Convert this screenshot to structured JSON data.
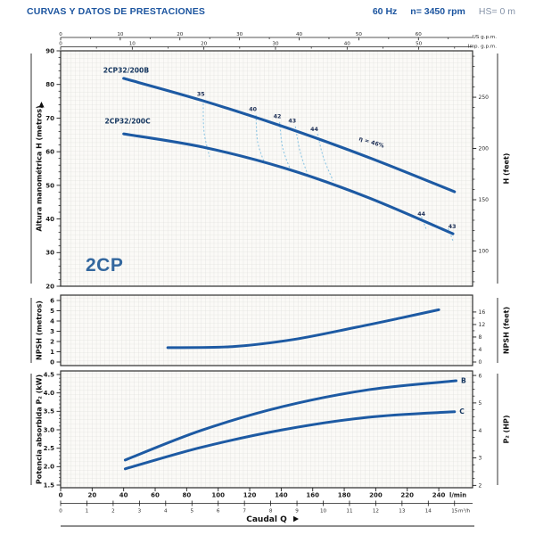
{
  "header": {
    "title": "CURVAS Y DATOS DE PRESTACIONES",
    "frequency": "60 Hz",
    "speed": "n= 3450 rpm",
    "suction": "HS= 0 m"
  },
  "model_label": "2CP",
  "colors": {
    "header_blue": "#1b549f",
    "suction_gray": "#8593a8",
    "curve_blue": "#1d5aa3",
    "curve_label_navy": "#15365f",
    "efficiency_dash_blue": "#8ec6e4",
    "grid_gray": "#d7d7d4",
    "plot_paper": "#fbfaf7",
    "axis_dark": "#2e2e2e",
    "model_blue": "#33679e"
  },
  "chart_data": [
    {
      "type": "line",
      "name": "head_vs_flow",
      "title": "",
      "x": {
        "unit": "l/min",
        "min": 0,
        "max": 261
      },
      "top_scales": [
        {
          "unit": "US g.p.m.",
          "ticks": [
            0,
            10,
            20,
            30,
            40,
            50,
            60
          ],
          "minor_step": 5,
          "lmin_per_unit": 3.785
        },
        {
          "unit": "Imp. g.p.m.",
          "ticks": [
            0,
            10,
            20,
            30,
            40,
            50
          ],
          "minor_step": 5,
          "lmin_per_unit": 4.546
        }
      ],
      "y_left": {
        "label": "Altura manométrica H (metros)",
        "min": 20,
        "max": 90,
        "ticks": [
          20,
          30,
          40,
          50,
          60,
          70,
          80,
          90
        ],
        "minor_step": 2
      },
      "y_right": {
        "label": "H (feet)",
        "ticks": [
          100,
          150,
          200,
          250
        ],
        "minor_step": 10,
        "m_per_foot": 0.3048
      },
      "grid": true,
      "series": [
        {
          "name": "2CP32/200B",
          "label_q": 27,
          "label_h": 83.5,
          "points": [
            [
              40,
              81.8
            ],
            [
              90,
              75.2
            ],
            [
              143,
              67.2
            ],
            [
              196,
              58.2
            ],
            [
              250,
              48.1
            ]
          ]
        },
        {
          "name": "2CP32/200C",
          "label_q": 28,
          "label_h": 68.4,
          "points": [
            [
              40,
              65.3
            ],
            [
              91,
              61.3
            ],
            [
              143,
              55.0
            ],
            [
              195,
              46.4
            ],
            [
              249,
              35.6
            ]
          ]
        }
      ],
      "efficiency": {
        "lines": [
          {
            "label": "35",
            "lq": 89,
            "lh": 76.6,
            "points": [
              [
                90.5,
                75.4
              ],
              [
                91,
                66
              ],
              [
                94.5,
                58.5
              ]
            ]
          },
          {
            "label": "40",
            "lq": 122,
            "lh": 72.1,
            "points": [
              [
                124,
                70.9
              ],
              [
                125,
                63
              ],
              [
                129,
                57.1
              ]
            ]
          },
          {
            "label": "42",
            "lq": 137.5,
            "lh": 70.0,
            "points": [
              [
                139,
                68.8
              ],
              [
                141,
                61
              ],
              [
                146,
                54.5
              ]
            ]
          },
          {
            "label": "43",
            "lq": 147,
            "lh": 68.6,
            "points": [
              [
                149,
                67.5
              ],
              [
                152,
                60
              ],
              [
                157,
                52.9
              ]
            ]
          },
          {
            "label": "44",
            "lq": 161,
            "lh": 66.2,
            "points": [
              [
                163,
                65.3
              ],
              [
                167,
                58
              ],
              [
                173,
                51.3
              ]
            ]
          },
          {
            "label": "44",
            "lq": 229,
            "lh": 41.0,
            "points": [
              [
                229,
                40.7
              ],
              [
                232,
                37
              ]
            ]
          },
          {
            "label": "43",
            "lq": 248.5,
            "lh": 37.2,
            "points": [
              [
                246,
                37.2
              ],
              [
                249,
                33.5
              ]
            ]
          }
        ],
        "best": {
          "text": "η = 46%",
          "q": 197,
          "h": 62.3,
          "rotation": 17
        }
      }
    },
    {
      "type": "line",
      "name": "npsh_vs_flow",
      "title": "",
      "y_left": {
        "label": "NPSH (metros)",
        "min": 0,
        "max": 6,
        "ticks": [
          0,
          1,
          2,
          3,
          4,
          5,
          6
        ]
      },
      "y_right": {
        "label": "NPSH (feet)",
        "ticks": [
          0,
          4,
          8,
          12,
          16
        ],
        "minor_step": 2,
        "m_per_foot": 0.3048
      },
      "grid": true,
      "series": [
        {
          "name": "NPSH",
          "points": [
            [
              68,
              1.4
            ],
            [
              109,
              1.5
            ],
            [
              148,
              2.2
            ],
            [
              188,
              3.4
            ],
            [
              216,
              4.3
            ],
            [
              240,
              5.1
            ]
          ]
        }
      ]
    },
    {
      "type": "line",
      "name": "power_vs_flow",
      "title": "",
      "y_left": {
        "label": "Potencia absorbida P₂ (kW)",
        "min": 1.5,
        "max": 4.5,
        "ticks": [
          "1.5",
          "2.0",
          "2.5",
          "3.0",
          "3.5",
          "4.0",
          "4.5"
        ],
        "minor_step": 0.1
      },
      "y_right": {
        "label": "P₂ (HP)",
        "ticks": [
          2,
          3,
          4,
          5,
          6
        ],
        "minor_step": 0.25,
        "kw_per_hp": 0.7457
      },
      "grid": true,
      "series": [
        {
          "name": "B",
          "points": [
            [
              41,
              2.18
            ],
            [
              89,
              2.98
            ],
            [
              141,
              3.63
            ],
            [
              196,
              4.09
            ],
            [
              251,
              4.33
            ]
          ]
        },
        {
          "name": "C",
          "points": [
            [
              41,
              1.94
            ],
            [
              89,
              2.52
            ],
            [
              141,
              3.0
            ],
            [
              195,
              3.34
            ],
            [
              250,
              3.49
            ]
          ]
        }
      ]
    }
  ],
  "bottom_axis": {
    "lmin": {
      "ticks": [
        0,
        20,
        40,
        60,
        80,
        100,
        120,
        140,
        160,
        180,
        200,
        220,
        240
      ],
      "unit": "l/min"
    },
    "m3h": {
      "ticks": [
        0,
        1,
        2,
        3,
        4,
        5,
        6,
        7,
        8,
        9,
        10,
        11,
        12,
        13,
        14,
        15
      ],
      "unit": "m³/h",
      "lmin_per_unit": 16.667
    },
    "title": "Caudal Q"
  }
}
